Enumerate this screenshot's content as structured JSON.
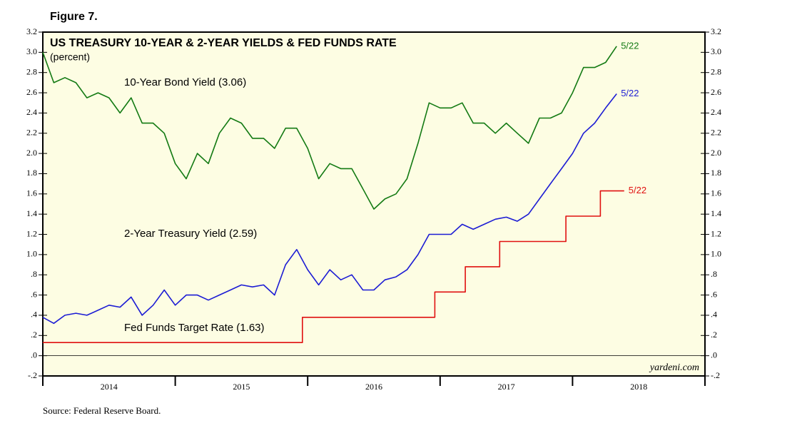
{
  "chart_data": {
    "type": "line",
    "figure_label": "Figure 7.",
    "title": "US TREASURY 10-YEAR & 2-YEAR YIELDS & FED FUNDS RATE",
    "subtitle": "(percent)",
    "source": "Source: Federal Reserve Board.",
    "watermark": "yardeni.com",
    "xlim": [
      2014,
      2019
    ],
    "xticks": [
      {
        "value": 2014.5,
        "label": "2014"
      },
      {
        "value": 2015.5,
        "label": "2015"
      },
      {
        "value": 2016.5,
        "label": "2016"
      },
      {
        "value": 2017.5,
        "label": "2017"
      },
      {
        "value": 2018.5,
        "label": "2018"
      }
    ],
    "ylim": [
      -0.2,
      3.2
    ],
    "yticks": [
      {
        "value": -0.2,
        "label": "-.2"
      },
      {
        "value": 0,
        "label": ".0"
      },
      {
        "value": 0.2,
        "label": ".2"
      },
      {
        "value": 0.4,
        "label": ".4"
      },
      {
        "value": 0.6,
        "label": ".6"
      },
      {
        "value": 0.8,
        "label": ".8"
      },
      {
        "value": 1.0,
        "label": "1.0"
      },
      1.2,
      1.4,
      1.6,
      1.8,
      {
        "value": 2.0,
        "label": "2.0"
      },
      2.2,
      2.4,
      2.6,
      2.8,
      {
        "value": 3.0,
        "label": "3.0"
      },
      3.2
    ],
    "series": [
      {
        "name": "10-Year Bond Yield (3.06)",
        "color": "#137a13",
        "end_label": "5/22",
        "x": [
          2014,
          2014.083,
          2014.167,
          2014.25,
          2014.333,
          2014.417,
          2014.5,
          2014.583,
          2014.667,
          2014.75,
          2014.833,
          2014.917,
          2015,
          2015.083,
          2015.167,
          2015.25,
          2015.333,
          2015.417,
          2015.5,
          2015.583,
          2015.667,
          2015.75,
          2015.833,
          2015.917,
          2016,
          2016.083,
          2016.167,
          2016.25,
          2016.333,
          2016.417,
          2016.5,
          2016.583,
          2016.667,
          2016.75,
          2016.833,
          2016.917,
          2017,
          2017.083,
          2017.167,
          2017.25,
          2017.333,
          2017.417,
          2017.5,
          2017.583,
          2017.667,
          2017.75,
          2017.833,
          2017.917,
          2018,
          2018.083,
          2018.167,
          2018.25,
          2018.333
        ],
        "values": [
          3.0,
          2.7,
          2.75,
          2.7,
          2.55,
          2.6,
          2.55,
          2.4,
          2.55,
          2.3,
          2.3,
          2.2,
          1.9,
          1.75,
          2.0,
          1.9,
          2.2,
          2.35,
          2.3,
          2.15,
          2.15,
          2.05,
          2.25,
          2.25,
          2.05,
          1.75,
          1.9,
          1.85,
          1.85,
          1.65,
          1.45,
          1.55,
          1.6,
          1.75,
          2.1,
          2.5,
          2.45,
          2.45,
          2.5,
          2.3,
          2.3,
          2.2,
          2.3,
          2.2,
          2.1,
          2.35,
          2.35,
          2.4,
          2.6,
          2.85,
          2.85,
          2.9,
          3.06
        ]
      },
      {
        "name": "2-Year Treasury Yield (2.59)",
        "color": "#1c1cd4",
        "end_label": "5/22",
        "x": [
          2014,
          2014.083,
          2014.167,
          2014.25,
          2014.333,
          2014.417,
          2014.5,
          2014.583,
          2014.667,
          2014.75,
          2014.833,
          2014.917,
          2015,
          2015.083,
          2015.167,
          2015.25,
          2015.333,
          2015.417,
          2015.5,
          2015.583,
          2015.667,
          2015.75,
          2015.833,
          2015.917,
          2016,
          2016.083,
          2016.167,
          2016.25,
          2016.333,
          2016.417,
          2016.5,
          2016.583,
          2016.667,
          2016.75,
          2016.833,
          2016.917,
          2017,
          2017.083,
          2017.167,
          2017.25,
          2017.333,
          2017.417,
          2017.5,
          2017.583,
          2017.667,
          2017.75,
          2017.833,
          2017.917,
          2018,
          2018.083,
          2018.167,
          2018.25,
          2018.333
        ],
        "values": [
          0.38,
          0.32,
          0.4,
          0.42,
          0.4,
          0.45,
          0.5,
          0.48,
          0.58,
          0.4,
          0.5,
          0.65,
          0.5,
          0.6,
          0.6,
          0.55,
          0.6,
          0.65,
          0.7,
          0.68,
          0.7,
          0.6,
          0.9,
          1.05,
          0.85,
          0.7,
          0.85,
          0.75,
          0.8,
          0.65,
          0.65,
          0.75,
          0.78,
          0.85,
          1.0,
          1.2,
          1.2,
          1.2,
          1.3,
          1.25,
          1.3,
          1.35,
          1.37,
          1.33,
          1.4,
          1.55,
          1.7,
          1.85,
          2.0,
          2.2,
          2.3,
          2.45,
          2.59
        ]
      },
      {
        "name": "Fed Funds Target Rate (1.63)",
        "color": "#e01010",
        "end_label": "5/22",
        "x": [
          2014,
          2015.96,
          2015.96,
          2016.96,
          2016.96,
          2017.19,
          2017.19,
          2017.45,
          2017.45,
          2017.95,
          2017.95,
          2018.21,
          2018.21,
          2018.39
        ],
        "values": [
          0.13,
          0.13,
          0.38,
          0.38,
          0.63,
          0.63,
          0.88,
          0.88,
          1.13,
          1.13,
          1.38,
          1.38,
          1.63,
          1.63
        ]
      }
    ]
  }
}
